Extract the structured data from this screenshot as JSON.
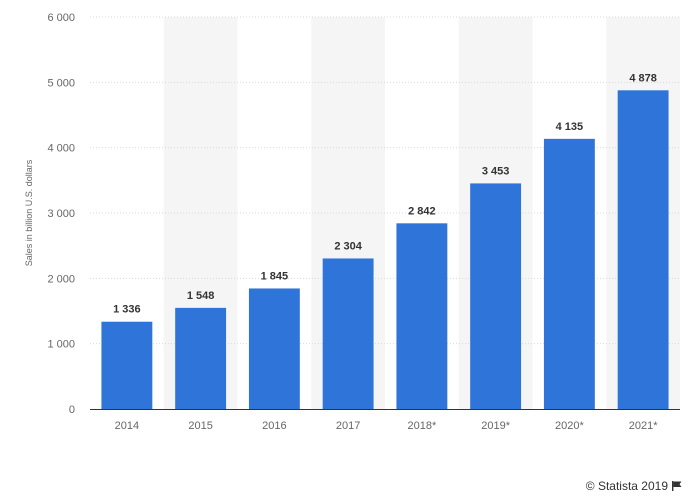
{
  "chart_data": {
    "type": "bar",
    "categories": [
      "2014",
      "2015",
      "2016",
      "2017",
      "2018*",
      "2019*",
      "2020*",
      "2021*"
    ],
    "values": [
      1336,
      1548,
      1845,
      2304,
      2842,
      3453,
      4135,
      4878
    ],
    "value_labels": [
      "1 336",
      "1 548",
      "1 845",
      "2 304",
      "2 842",
      "3 453",
      "4 135",
      "4 878"
    ],
    "ylabel": "Sales in billion U.S. dollars",
    "ylim": [
      0,
      6000
    ],
    "yticks": [
      0,
      1000,
      2000,
      3000,
      4000,
      5000,
      6000
    ],
    "ytick_labels": [
      "0",
      "1 000",
      "2 000",
      "3 000",
      "4 000",
      "5 000",
      "6 000"
    ],
    "grid": true,
    "bar_color": "#2f74d9",
    "band_color": "#f5f5f5"
  },
  "credit": {
    "text": "© Statista 2019",
    "icon": "flag-icon"
  }
}
